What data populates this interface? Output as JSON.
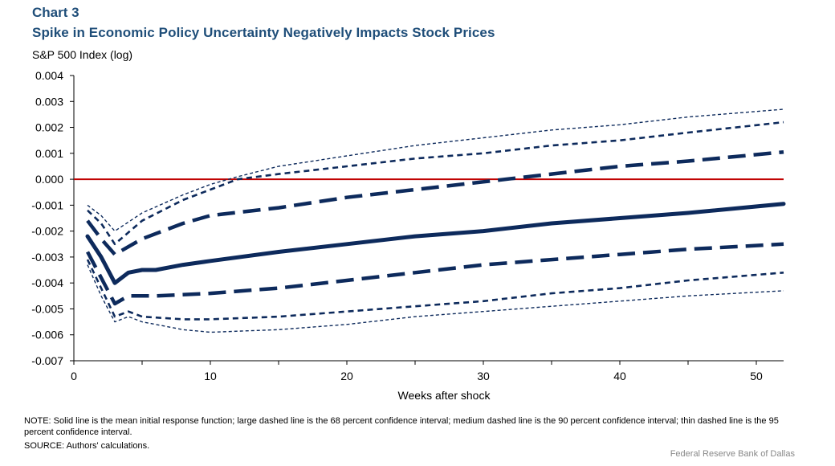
{
  "header": {
    "chart_number": "Chart 3",
    "title": "Spike in Economic Policy Uncertainty Negatively Impacts Stock Prices"
  },
  "footer": {
    "note": "NOTE:  Solid line is the mean initial response function; large dashed line is the 68 percent confidence interval; medium dashed line is the 90 percent confidence interval; thin dashed line is the 95 percent confidence interval.",
    "source": "SOURCE:  Authors' calculations.",
    "credit": "Federal Reserve  Bank of Dallas"
  },
  "colors": {
    "series": "#0d2a5c",
    "zero_line": "#c00000",
    "title": "#1f4e79"
  },
  "chart_data": {
    "type": "line",
    "title": "Spike in Economic Policy Uncertainty Negatively Impacts Stock Prices",
    "xlabel": "Weeks after shock",
    "ylabel": "S&P 500 Index (log)",
    "xlim": [
      0,
      52
    ],
    "ylim": [
      -0.007,
      0.004
    ],
    "xticks": [
      0,
      10,
      20,
      30,
      40,
      50
    ],
    "yticks": [
      0.004,
      0.003,
      0.002,
      0.001,
      0.0,
      -0.001,
      -0.002,
      -0.003,
      -0.004,
      -0.005,
      -0.006,
      -0.007
    ],
    "ytick_labels": [
      "0.004",
      "0.003",
      "0.002",
      "0.001",
      "0.000",
      "-0.001",
      "-0.002",
      "-0.003",
      "-0.004",
      "-0.005",
      "-0.006",
      "-0.007"
    ],
    "reference_line": 0,
    "series": [
      {
        "name": "Mean",
        "style": "solid",
        "x": [
          1,
          2,
          3,
          4,
          5,
          6,
          8,
          10,
          15,
          20,
          25,
          30,
          35,
          40,
          45,
          52
        ],
        "y": [
          -0.0022,
          -0.003,
          -0.004,
          -0.0036,
          -0.0035,
          -0.0035,
          -0.0033,
          -0.00315,
          -0.0028,
          -0.0025,
          -0.0022,
          -0.002,
          -0.0017,
          -0.0015,
          -0.0013,
          -0.00095
        ]
      },
      {
        "name": "68% upper",
        "style": "large-dash",
        "x": [
          1,
          2,
          3,
          5,
          8,
          10,
          15,
          20,
          25,
          30,
          35,
          40,
          45,
          52
        ],
        "y": [
          -0.0016,
          -0.0023,
          -0.0029,
          -0.0023,
          -0.0017,
          -0.0014,
          -0.0011,
          -0.0007,
          -0.0004,
          -0.0001,
          0.0002,
          0.0005,
          0.0007,
          0.00105
        ]
      },
      {
        "name": "68% lower",
        "style": "large-dash",
        "x": [
          1,
          2,
          3,
          4,
          6,
          10,
          15,
          20,
          25,
          30,
          35,
          40,
          45,
          52
        ],
        "y": [
          -0.0028,
          -0.0038,
          -0.0048,
          -0.0045,
          -0.0045,
          -0.0044,
          -0.0042,
          -0.0039,
          -0.0036,
          -0.0033,
          -0.0031,
          -0.0029,
          -0.0027,
          -0.0025
        ]
      },
      {
        "name": "90% upper",
        "style": "medium-dash",
        "x": [
          1,
          2,
          3,
          5,
          8,
          10,
          12,
          15,
          20,
          25,
          30,
          35,
          40,
          45,
          52
        ],
        "y": [
          -0.0012,
          -0.0017,
          -0.0025,
          -0.0016,
          -0.0008,
          -0.0004,
          0.0,
          0.0002,
          0.0005,
          0.0008,
          0.001,
          0.0013,
          0.0015,
          0.0018,
          0.0022
        ]
      },
      {
        "name": "90% lower",
        "style": "medium-dash",
        "x": [
          1,
          2,
          3,
          4,
          5,
          8,
          10,
          15,
          20,
          25,
          30,
          35,
          40,
          45,
          52
        ],
        "y": [
          -0.0031,
          -0.0042,
          -0.0053,
          -0.0051,
          -0.0053,
          -0.0054,
          -0.0054,
          -0.0053,
          -0.0051,
          -0.0049,
          -0.0047,
          -0.0044,
          -0.0042,
          -0.0039,
          -0.0036
        ]
      },
      {
        "name": "95% upper",
        "style": "thin-dash",
        "x": [
          1,
          2,
          3,
          5,
          8,
          10,
          12,
          15,
          20,
          25,
          30,
          35,
          40,
          45,
          52
        ],
        "y": [
          -0.001,
          -0.0014,
          -0.002,
          -0.0013,
          -0.0006,
          -0.0002,
          0.0001,
          0.0005,
          0.0009,
          0.0013,
          0.0016,
          0.0019,
          0.0021,
          0.0024,
          0.0027
        ]
      },
      {
        "name": "95% lower",
        "style": "thin-dash",
        "x": [
          1,
          2,
          3,
          4,
          5,
          8,
          10,
          15,
          20,
          25,
          30,
          35,
          40,
          45,
          52
        ],
        "y": [
          -0.0033,
          -0.0045,
          -0.0055,
          -0.0053,
          -0.0055,
          -0.0058,
          -0.0059,
          -0.0058,
          -0.0056,
          -0.0053,
          -0.0051,
          -0.0049,
          -0.0047,
          -0.0045,
          -0.0043
        ]
      }
    ]
  }
}
